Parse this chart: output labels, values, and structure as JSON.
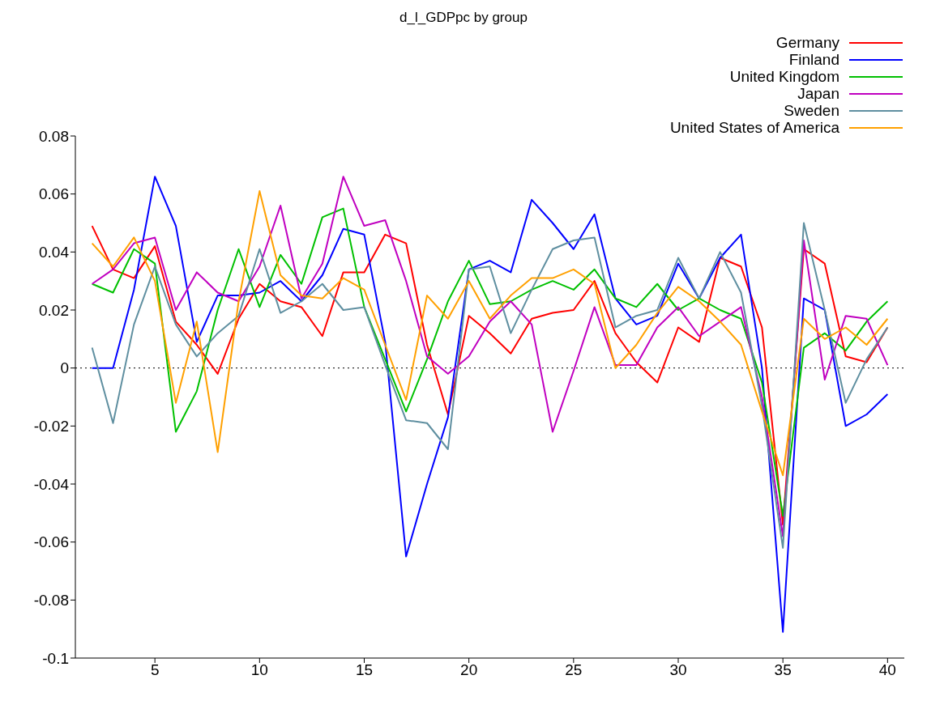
{
  "chart_data": {
    "type": "line",
    "title": "d_l_GDPpc by group",
    "x": [
      2,
      3,
      4,
      5,
      6,
      7,
      8,
      9,
      10,
      11,
      12,
      13,
      14,
      15,
      16,
      17,
      18,
      19,
      20,
      21,
      22,
      23,
      24,
      25,
      26,
      27,
      28,
      29,
      30,
      31,
      32,
      33,
      34,
      35,
      36,
      37,
      38,
      39,
      40
    ],
    "series": [
      {
        "name": "Germany",
        "color": "#ff0000",
        "values": [
          0.049,
          0.034,
          0.031,
          0.042,
          0.016,
          0.008,
          -0.002,
          0.017,
          0.029,
          0.023,
          0.021,
          0.011,
          0.033,
          0.033,
          0.046,
          0.043,
          0.008,
          -0.016,
          0.018,
          0.012,
          0.005,
          0.017,
          0.019,
          0.02,
          0.03,
          0.012,
          0.002,
          -0.005,
          0.014,
          0.009,
          0.038,
          0.035,
          0.014,
          -0.054,
          0.041,
          0.036,
          0.004,
          0.002,
          0.014
        ]
      },
      {
        "name": "Finland",
        "color": "#0000ff",
        "values": [
          0.0,
          0.0,
          0.027,
          0.066,
          0.049,
          0.009,
          0.025,
          0.025,
          0.026,
          0.03,
          0.023,
          0.032,
          0.048,
          0.046,
          0.009,
          -0.065,
          -0.04,
          -0.017,
          0.034,
          0.037,
          0.033,
          0.058,
          0.05,
          0.041,
          0.053,
          0.024,
          0.015,
          0.018,
          0.036,
          0.024,
          0.038,
          0.046,
          0.0,
          -0.091,
          0.024,
          0.02,
          -0.02,
          -0.016,
          -0.009
        ]
      },
      {
        "name": "United Kingdom",
        "color": "#00c000",
        "values": [
          0.029,
          0.026,
          0.041,
          0.036,
          -0.022,
          -0.008,
          0.02,
          0.041,
          0.021,
          0.039,
          0.029,
          0.052,
          0.055,
          0.021,
          0.003,
          -0.015,
          0.003,
          0.023,
          0.037,
          0.022,
          0.023,
          0.027,
          0.03,
          0.027,
          0.034,
          0.024,
          0.021,
          0.029,
          0.02,
          0.024,
          0.02,
          0.017,
          -0.005,
          -0.051,
          0.007,
          0.012,
          0.006,
          0.016,
          0.023
        ]
      },
      {
        "name": "Japan",
        "color": "#c000c0",
        "values": [
          0.029,
          0.034,
          0.043,
          0.045,
          0.02,
          0.033,
          0.026,
          0.023,
          0.035,
          0.056,
          0.024,
          0.036,
          0.066,
          0.049,
          0.051,
          0.03,
          0.004,
          -0.002,
          0.004,
          0.016,
          0.023,
          0.015,
          -0.022,
          -0.001,
          0.021,
          0.001,
          0.001,
          0.014,
          0.021,
          0.011,
          0.016,
          0.021,
          -0.01,
          -0.058,
          0.044,
          -0.004,
          0.018,
          0.017,
          0.001
        ]
      },
      {
        "name": "Sweden",
        "color": "#5f8fa0",
        "values": [
          0.007,
          -0.019,
          0.015,
          0.035,
          0.015,
          0.004,
          0.012,
          0.018,
          0.041,
          0.019,
          0.023,
          0.029,
          0.02,
          0.021,
          0.001,
          -0.018,
          -0.019,
          -0.028,
          0.034,
          0.035,
          0.012,
          0.027,
          0.041,
          0.044,
          0.045,
          0.014,
          0.018,
          0.02,
          0.038,
          0.024,
          0.04,
          0.026,
          -0.013,
          -0.062,
          0.05,
          0.02,
          -0.012,
          0.003,
          0.014
        ]
      },
      {
        "name": "United States of America",
        "color": "#ffa000",
        "values": [
          0.043,
          0.035,
          0.045,
          0.03,
          -0.012,
          0.016,
          -0.029,
          0.023,
          0.061,
          0.032,
          0.025,
          0.024,
          0.031,
          0.027,
          0.008,
          -0.011,
          0.025,
          0.017,
          0.03,
          0.017,
          0.025,
          0.031,
          0.031,
          0.034,
          0.029,
          0.0,
          0.008,
          0.019,
          0.028,
          0.023,
          0.016,
          0.008,
          -0.015,
          -0.037,
          0.017,
          0.01,
          0.014,
          0.008,
          0.017
        ]
      }
    ],
    "xlim": [
      1.2,
      40.8
    ],
    "xticks": [
      5,
      10,
      15,
      20,
      25,
      30,
      35,
      40
    ],
    "ylim": [
      -0.1,
      0.08
    ],
    "yticks": [
      -0.1,
      -0.08,
      -0.06,
      -0.04,
      -0.02,
      0,
      0.02,
      0.04,
      0.06,
      0.08
    ],
    "ref_lines": [
      {
        "axis": "y",
        "value": 0,
        "line_style": "dotted",
        "color": "#000000"
      }
    ],
    "legend": "top right",
    "grid": false,
    "marker": "none",
    "line_style": "solid"
  }
}
